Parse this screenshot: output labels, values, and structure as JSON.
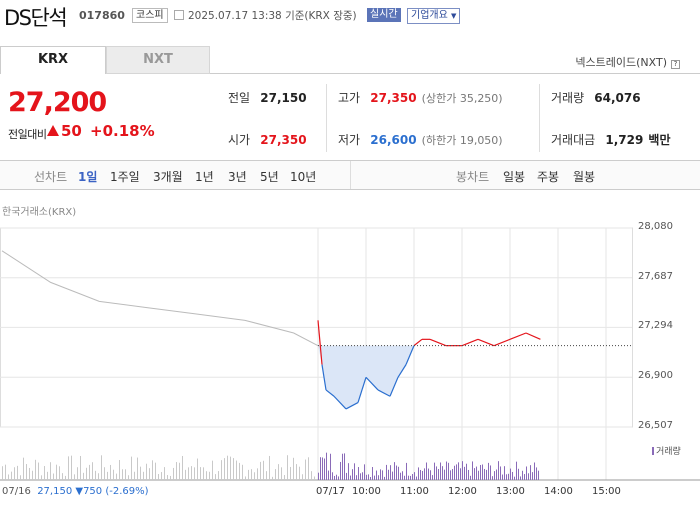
{
  "header": {
    "name": "DS단석",
    "code": "017860",
    "market": "코스피",
    "datetime": "2025.07.17 13:38",
    "basis": "기준(KRX 장중)",
    "live_label": "실시간",
    "info_label": "기업개요"
  },
  "tabs": {
    "krx": "KRX",
    "nxt": "NXT"
  },
  "nxt_label": "넥스트레이드(NXT)",
  "quote": {
    "price": "27,200",
    "diff_label": "전일대비",
    "diff_value": "50",
    "diff_pct": "+0.18%",
    "prev_label": "전일",
    "prev_value": "27,150",
    "high_label": "고가",
    "high_value": "27,350",
    "upper_limit": "(상한가 35,250)",
    "volume_label": "거래량",
    "volume_value": "64,076",
    "open_label": "시가",
    "open_value": "27,350",
    "low_label": "저가",
    "low_value": "26,600",
    "lower_limit": "(하한가 19,050)",
    "amount_label": "거래대금",
    "amount_value": "1,729",
    "amount_unit": "백만"
  },
  "period_bar": {
    "line_label": "선차트",
    "periods": [
      "1일",
      "1주일",
      "3개월",
      "1년",
      "3년",
      "5년",
      "10년"
    ],
    "selected": "1일",
    "candle_label": "봉차트",
    "candles": [
      "일봉",
      "주봉",
      "월봉"
    ]
  },
  "chart": {
    "source": "한국거래소(KRX)",
    "volume_legend": "거래량",
    "prev_day_summary": {
      "date": "07/16",
      "close": "27,150",
      "change": "▼750",
      "pct": "(-2.69%)"
    },
    "colors": {
      "up": "#e4141b",
      "down": "#2b6fcf",
      "prev": "#bbbbbb",
      "fill": "#dbe6f7",
      "volume": "#8a6bb8"
    }
  },
  "chart_data": {
    "type": "line",
    "yticks": [
      "28,080",
      "27,687",
      "27,294",
      "26,900",
      "26,507"
    ],
    "ylim": [
      26507,
      28080
    ],
    "xticks": [
      "07/17",
      "10:00",
      "11:00",
      "12:00",
      "13:00",
      "14:00",
      "15:00"
    ],
    "reference_price": 27150,
    "series": [
      {
        "x": [
          "07/16 09:00",
          "07/16 10:00",
          "07/16 11:00",
          "07/16 12:00",
          "07/16 13:00",
          "07/16 14:00",
          "07/16 15:00",
          "07/16 15:30"
        ],
        "values": [
          27900,
          27650,
          27500,
          27450,
          27400,
          27350,
          27250,
          27150
        ]
      },
      {
        "x": [
          "09:00",
          "09:05",
          "09:10",
          "09:20",
          "09:35",
          "09:50",
          "10:00",
          "10:15",
          "10:30",
          "10:40",
          "10:50",
          "11:00",
          "11:10",
          "11:20",
          "11:40",
          "12:00",
          "12:20",
          "12:40",
          "13:00",
          "13:20",
          "13:38"
        ],
        "values": [
          27350,
          27000,
          26800,
          26750,
          26650,
          26700,
          26900,
          26800,
          26750,
          26900,
          27000,
          27150,
          27200,
          27200,
          27150,
          27150,
          27200,
          27150,
          27200,
          27250,
          27200
        ]
      }
    ]
  }
}
